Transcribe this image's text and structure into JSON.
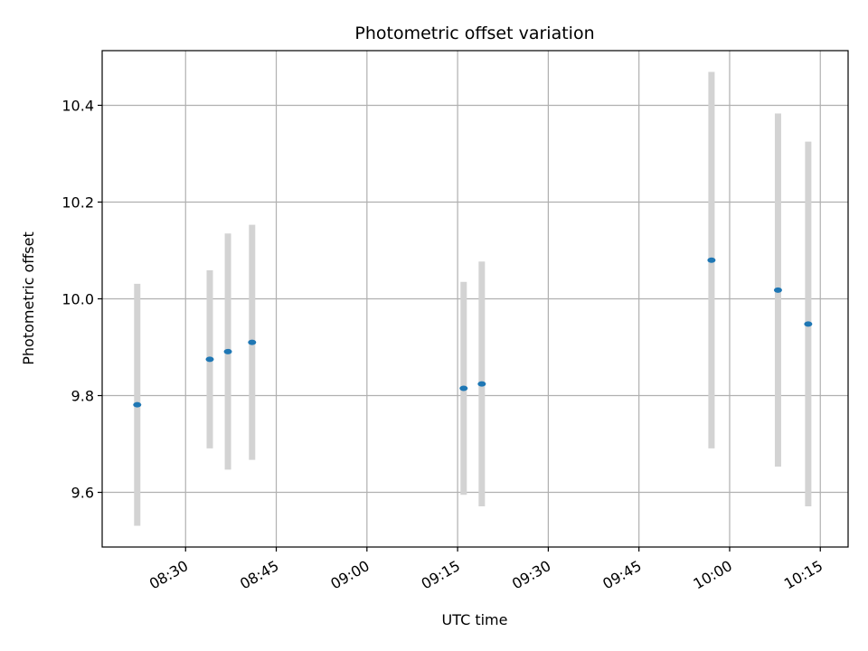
{
  "chart_data": {
    "type": "scatter",
    "title": "Photometric offset variation",
    "xlabel": "UTC time",
    "ylabel": "Photometric offset",
    "x_ticks": [
      "08:30",
      "08:45",
      "09:00",
      "09:15",
      "09:30",
      "09:45",
      "10:00",
      "10:15"
    ],
    "x_tick_minutes": [
      510,
      525,
      540,
      555,
      570,
      585,
      600,
      615
    ],
    "xlim_minutes": [
      496.2,
      619.6
    ],
    "y_ticks": [
      "9.6",
      "9.8",
      "10.0",
      "10.2",
      "10.4"
    ],
    "y_tick_values": [
      9.6,
      9.8,
      10.0,
      10.2,
      10.4
    ],
    "ylim": [
      9.487,
      10.513
    ],
    "grid": true,
    "marker_color": "#1f77b4",
    "errorbar_color": "#d3d3d3",
    "series": [
      {
        "points": [
          {
            "time": "08:22",
            "y": 9.781,
            "low": 9.531,
            "high": 10.031
          },
          {
            "time": "08:34",
            "y": 9.875,
            "low": 9.691,
            "high": 10.059
          },
          {
            "time": "08:37",
            "y": 9.891,
            "low": 9.647,
            "high": 10.135
          },
          {
            "time": "08:41",
            "y": 9.91,
            "low": 9.667,
            "high": 10.153
          },
          {
            "time": "09:16",
            "y": 9.815,
            "low": 9.595,
            "high": 10.035
          },
          {
            "time": "09:19",
            "y": 9.824,
            "low": 9.571,
            "high": 10.077
          },
          {
            "time": "09:57",
            "y": 10.08,
            "low": 9.691,
            "high": 10.469
          },
          {
            "time": "10:08",
            "y": 10.018,
            "low": 9.653,
            "high": 10.383
          },
          {
            "time": "10:13",
            "y": 9.948,
            "low": 9.571,
            "high": 10.325
          }
        ]
      }
    ]
  }
}
